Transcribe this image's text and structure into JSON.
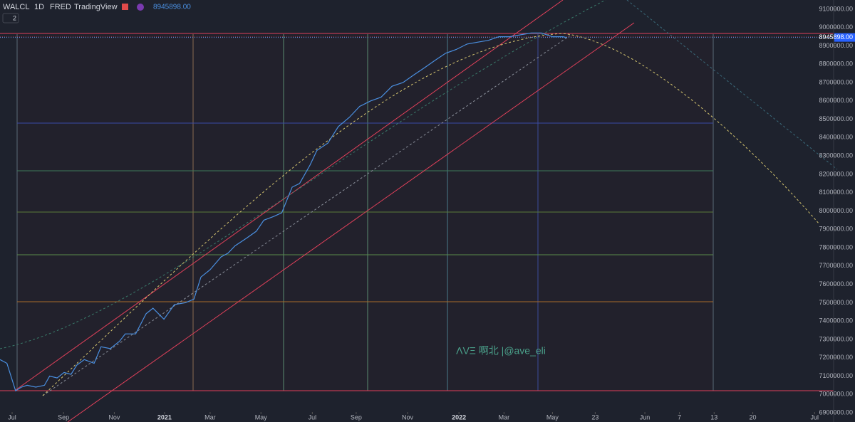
{
  "chart_data": {
    "type": "line",
    "header": {
      "symbol": "WALCL",
      "interval": "1D",
      "source": "FRED",
      "platform": "TradingView",
      "last_value": "8945898.00",
      "count": "2"
    },
    "watermark": "ΛVΞ 啊北 |@ave_eli",
    "x": [
      -2.1,
      -0.9,
      0.6,
      1.6,
      2.6,
      4.1,
      5.6,
      6.5,
      7.8,
      9.0,
      10.2,
      11.2,
      12.5,
      14.2,
      15.4,
      17.0,
      18.6,
      19.6,
      21.4,
      23.2,
      24.4,
      26.3,
      28.1,
      30.0,
      31.5,
      32.7,
      34.3,
      36.2,
      37.4,
      38.6,
      40.5,
      42.3,
      43.6,
      45.3,
      46.7,
      48.5,
      49.8,
      51.6,
      52.8,
      54.7,
      56.5,
      58.4,
      60.2,
      62.1,
      63.9,
      65.8,
      67.7,
      69.5,
      71.4,
      73.2,
      75.1,
      76.9,
      78.8,
      80.6,
      82.5,
      84.3,
      86.2,
      88.0,
      89.9,
      91.7,
      93.6,
      95.4,
      96.0
    ],
    "series": [
      {
        "name": "WALCL",
        "color": "#4a8fe0",
        "values": [
          7190000,
          7170000,
          7020000,
          7040000,
          7050000,
          7040000,
          7050000,
          7100000,
          7090000,
          7120000,
          7110000,
          7160000,
          7190000,
          7170000,
          7260000,
          7250000,
          7290000,
          7330000,
          7330000,
          7440000,
          7470000,
          7410000,
          7490000,
          7500000,
          7520000,
          7640000,
          7680000,
          7750000,
          7770000,
          7810000,
          7850000,
          7890000,
          7950000,
          7970000,
          7990000,
          8130000,
          8150000,
          8250000,
          8330000,
          8370000,
          8460000,
          8510000,
          8570000,
          8600000,
          8620000,
          8680000,
          8700000,
          8740000,
          8780000,
          8820000,
          8860000,
          8880000,
          8910000,
          8920000,
          8930000,
          8950000,
          8950000,
          8960000,
          8970000,
          8970000,
          8950000,
          8950000,
          8945898
        ]
      }
    ],
    "xlim": [
      -2.1,
      142.3
    ],
    "xticks": [
      {
        "value": 0,
        "label": "Jul"
      },
      {
        "value": 8.9,
        "label": "Sep"
      },
      {
        "value": 17.7,
        "label": "Nov"
      },
      {
        "value": 26.4,
        "label": "2021"
      },
      {
        "value": 34.3,
        "label": "Mar"
      },
      {
        "value": 43.1,
        "label": "May"
      },
      {
        "value": 52,
        "label": "Jul"
      },
      {
        "value": 59.6,
        "label": "Sep"
      },
      {
        "value": 68.5,
        "label": "Nov"
      },
      {
        "value": 77.4,
        "label": "2022"
      },
      {
        "value": 85.2,
        "label": "Mar"
      },
      {
        "value": 93.6,
        "label": "May"
      },
      {
        "value": 101,
        "label": "23"
      },
      {
        "value": 109.6,
        "label": "Jun"
      },
      {
        "value": 115.6,
        "label": "7"
      },
      {
        "value": 121.6,
        "label": "13"
      },
      {
        "value": 128.3,
        "label": "20"
      },
      {
        "value": 139,
        "label": "Jul"
      }
    ],
    "ylim": [
      6850000,
      9150000
    ],
    "yticks": [
      {
        "value": 6900000,
        "label": "6900000.00"
      },
      {
        "value": 7000000,
        "label": "7000000.00"
      },
      {
        "value": 7100000,
        "label": "7100000.00"
      },
      {
        "value": 7200000,
        "label": "7200000.00"
      },
      {
        "value": 7300000,
        "label": "7300000.00"
      },
      {
        "value": 7400000,
        "label": "7400000.00"
      },
      {
        "value": 7500000,
        "label": "7500000.00"
      },
      {
        "value": 7600000,
        "label": "7600000.00"
      },
      {
        "value": 7700000,
        "label": "7700000.00"
      },
      {
        "value": 7800000,
        "label": "7800000.00"
      },
      {
        "value": 7900000,
        "label": "7900000.00"
      },
      {
        "value": 8000000,
        "label": "8000000.00"
      },
      {
        "value": 8100000,
        "label": "8100000.00"
      },
      {
        "value": 8200000,
        "label": "8200000.00"
      },
      {
        "value": 8300000,
        "label": "8300000.00"
      },
      {
        "value": 8400000,
        "label": "8400000.00"
      },
      {
        "value": 8500000,
        "label": "8500000.00"
      },
      {
        "value": 8600000,
        "label": "8600000.00"
      },
      {
        "value": 8700000,
        "label": "8700000.00"
      },
      {
        "value": 8800000,
        "label": "8800000.00"
      },
      {
        "value": 8900000,
        "label": "8900000.00"
      },
      {
        "value": 9000000,
        "label": "9000000.00"
      },
      {
        "value": 9100000,
        "label": "9100000.00"
      }
    ],
    "last_label": {
      "value": 8945898,
      "label": "8945898.00"
    }
  }
}
